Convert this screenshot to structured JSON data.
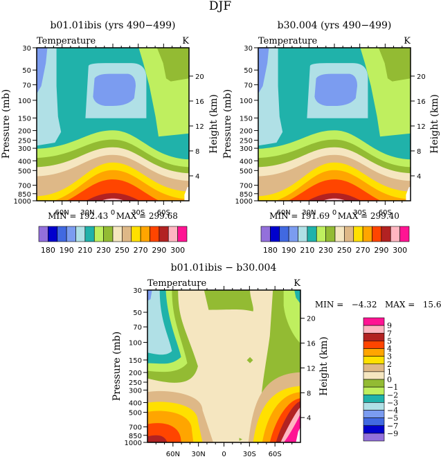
{
  "page_title": "DJF",
  "palette": {
    "c01": "#9370db",
    "c02": "#0000cd",
    "c03": "#4169e1",
    "c04": "#7b9cf0",
    "c05": "#b0e0e6",
    "c06": "#20b2aa",
    "c07": "#bfef5f",
    "c08": "#93bb33",
    "c09": "#f5e6c0",
    "c10": "#deb887",
    "c11": "#ffe000",
    "c12": "#ffa500",
    "c13": "#ff4500",
    "c14": "#b22222",
    "c15": "#ffb6c1",
    "c16": "#ff1493"
  },
  "chart_data": [
    {
      "type": "heatmap",
      "subtype": "filled-contour",
      "title": "b01.01ibis (yrs 490−499)",
      "left_string": "Temperature",
      "right_string": "K",
      "xlabel": "",
      "ylabel": "Pressure (mb)",
      "ylabel_right": "Height (km)",
      "x_ticks": [
        "60N",
        "30N",
        "0",
        "30S",
        "60S"
      ],
      "y_ticks": [
        "30",
        "50",
        "70",
        "100",
        "150",
        "200",
        "250",
        "300",
        "400",
        "500",
        "700",
        "850",
        "1000"
      ],
      "y_ticks_right": [
        "20",
        "16",
        "12",
        "8",
        "4"
      ],
      "ylim": [
        1000,
        30
      ],
      "xlim": [
        "90N",
        "90S"
      ],
      "min_max_text": "MIN = 192.43   MAX = 299.68",
      "colorbar": {
        "orientation": "horizontal",
        "levels": [
          180,
          185,
          190,
          200,
          210,
          220,
          230,
          240,
          250,
          260,
          270,
          280,
          290,
          295,
          300
        ],
        "labels": [
          "180",
          "190",
          "210",
          "230",
          "250",
          "270",
          "290",
          "300"
        ]
      }
    },
    {
      "type": "heatmap",
      "subtype": "filled-contour",
      "title": "b30.004 (yrs 490−499)",
      "left_string": "Temperature",
      "right_string": "K",
      "xlabel": "",
      "ylabel": "Pressure (mb)",
      "ylabel_right": "Height (km)",
      "x_ticks": [
        "60N",
        "30N",
        "0",
        "30S",
        "60S"
      ],
      "y_ticks": [
        "30",
        "50",
        "70",
        "100",
        "150",
        "200",
        "250",
        "300",
        "400",
        "500",
        "700",
        "850",
        "1000"
      ],
      "y_ticks_right": [
        "20",
        "16",
        "12",
        "8",
        "4"
      ],
      "ylim": [
        1000,
        30
      ],
      "xlim": [
        "90N",
        "90S"
      ],
      "min_max_text": "MIN = 191.69   MAX = 299.40",
      "colorbar": {
        "orientation": "horizontal",
        "levels": [
          180,
          185,
          190,
          200,
          210,
          220,
          230,
          240,
          250,
          260,
          270,
          280,
          290,
          295,
          300
        ],
        "labels": [
          "180",
          "190",
          "210",
          "230",
          "250",
          "270",
          "290",
          "300"
        ]
      }
    },
    {
      "type": "heatmap",
      "subtype": "filled-contour",
      "title": "b01.01ibis − b30.004",
      "left_string": "Temperature",
      "right_string": "K",
      "xlabel": "",
      "ylabel": "Pressure (mb)",
      "ylabel_right": "Height (km)",
      "x_ticks": [
        "60N",
        "30N",
        "0",
        "30S",
        "60S"
      ],
      "y_ticks": [
        "30",
        "50",
        "70",
        "100",
        "150",
        "200",
        "250",
        "300",
        "400",
        "500",
        "700",
        "850",
        "1000"
      ],
      "y_ticks_right": [
        "20",
        "16",
        "12",
        "8",
        "4"
      ],
      "ylim": [
        1000,
        30
      ],
      "xlim": [
        "90N",
        "90S"
      ],
      "min_max_text": "MIN =   −4.32   MAX =   15.62",
      "colorbar": {
        "orientation": "vertical",
        "levels": [
          -9,
          -7,
          -5,
          -4,
          -3,
          -2,
          -1,
          0,
          1,
          2,
          3,
          4,
          5,
          7,
          9
        ],
        "labels": [
          "9",
          "7",
          "5",
          "4",
          "3",
          "2",
          "1",
          "0",
          "−1",
          "−2",
          "−3",
          "−4",
          "−5",
          "−7",
          "−9"
        ]
      }
    }
  ]
}
